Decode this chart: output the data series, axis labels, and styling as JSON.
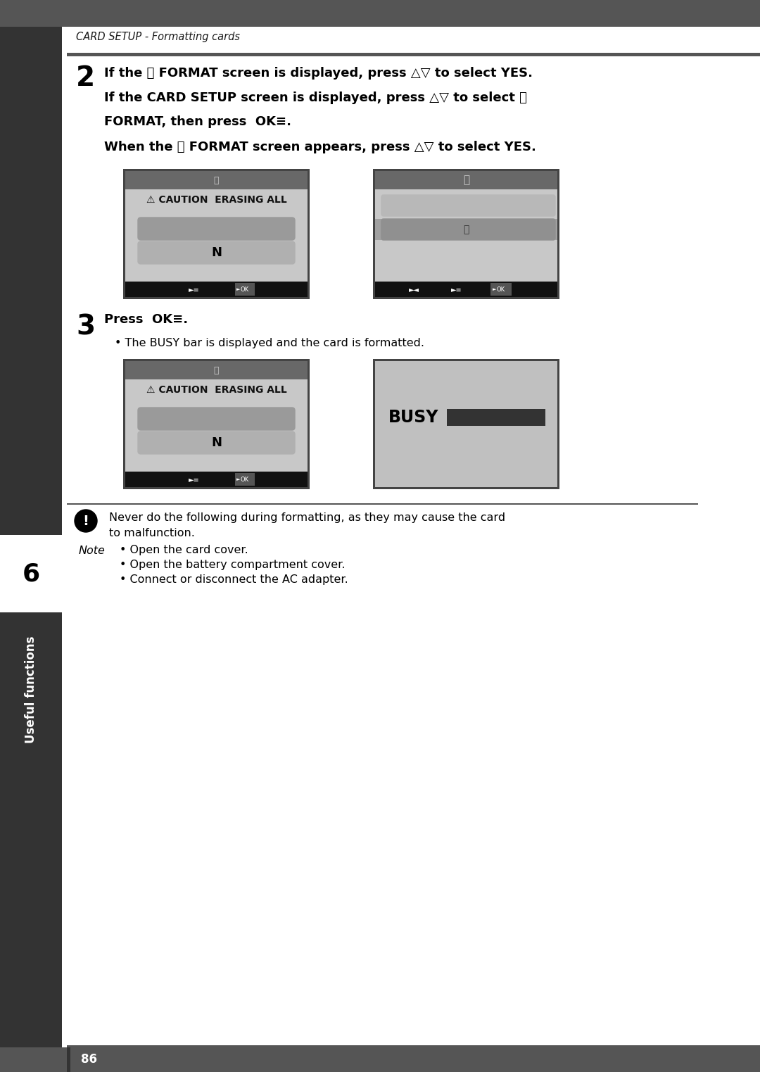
{
  "page_bg": "#ffffff",
  "header_bar_color": "#555555",
  "header_sep_color": "#555555",
  "header_text": "CARD SETUP - Formatting cards",
  "left_sidebar_color": "#333333",
  "left_sidebar_label": "Useful functions",
  "left_tab_number": "6",
  "page_number": "86",
  "bottom_bar_color": "#555555",
  "step2_number": "2",
  "step2_line1": "If the ⓕ FORMAT screen is displayed, press △▽ to select YES.",
  "step2_line2": "If the CARD SETUP screen is displayed, press △▽ to select ⓕ",
  "step2_line3": "FORMAT, then press  OK≡.",
  "step2_line4": "When the ⓕ FORMAT screen appears, press △▽ to select YES.",
  "step3_number": "3",
  "step3_line": "Press  OK≡.",
  "step3_bullet": "• The BUSY bar is displayed and the card is formatted.",
  "caution_label": "⚠ CAUTION  ERASING ALL",
  "n_label": "N",
  "busy_label": "BUSY",
  "note_line1": "Never do the following during formatting, as they may cause the card",
  "note_line2": "to malfunction.",
  "note_line3": "• Open the card cover.",
  "note_line4": "• Open the battery compartment cover.",
  "note_line5": "• Connect or disconnect the AC adapter.",
  "col_screen_outer": "#444444",
  "col_screen_bg": "#c8c8c8",
  "col_screen_titlebar": "#686868",
  "col_screen_bottombar": "#111111",
  "col_btn_yes": "#9a9a9a",
  "col_btn_no": "#b0b0b0",
  "col_busy_bar": "#333333",
  "col_busy_bg": "#c0c0c0",
  "col_ok_box": "#555555"
}
